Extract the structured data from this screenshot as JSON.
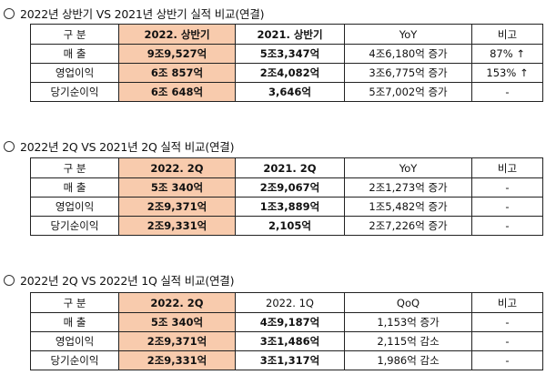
{
  "sections": [
    {
      "title": "2022년 상반기 VS 2021년 상반기 실적 비교(연결)",
      "headers": [
        "구 분",
        "2022. 상반기",
        "2021. 상반기",
        "YoY",
        "비고"
      ],
      "rows": [
        {
          "label": "매 출",
          "current": "9조9,527억",
          "previous": "5조3,347억",
          "diff": "4조6,180억 증가",
          "note": "87% ↑"
        },
        {
          "label": "영업이익",
          "current": "6조 857억",
          "previous": "2조4,082억",
          "diff": "3조6,775억 증가",
          "note": "153% ↑"
        },
        {
          "label": "당기순이익",
          "current": "6조 648억",
          "previous": "3,646억",
          "diff": "5조7,002억 증가",
          "note": "-"
        }
      ]
    },
    {
      "title": "2022년 2Q VS 2021년 2Q 실적 비교(연결)",
      "headers": [
        "구 분",
        "2022. 2Q",
        "2021. 2Q",
        "YoY",
        "비고"
      ],
      "rows": [
        {
          "label": "매 출",
          "current": "5조 340억",
          "previous": "2조9,067억",
          "diff": "2조1,273억 증가",
          "note": "-"
        },
        {
          "label": "영업이익",
          "current": "2조9,371억",
          "previous": "1조3,889억",
          "diff": "1조5,482억 증가",
          "note": "-"
        },
        {
          "label": "당기순이익",
          "current": "2조9,331억",
          "previous": "2,105억",
          "diff": "2조7,226억 증가",
          "note": "-"
        }
      ]
    },
    {
      "title": "2022년 2Q VS 2022년 1Q 실적 비교(연결)",
      "headers": [
        "구 분",
        "2022. 2Q",
        "2022. 1Q",
        "QoQ",
        "비고"
      ],
      "rows": [
        {
          "label": "매 출",
          "current": "5조 340억",
          "previous": "4조9,187억",
          "diff": "1,153억 증가",
          "note": "-"
        },
        {
          "label": "영업이익",
          "current": "2조9,371억",
          "previous": "3조1,486억",
          "diff": "2,115억 감소",
          "note": "-"
        },
        {
          "label": "당기순이익",
          "current": "2조9,331억",
          "previous": "3조1,317억",
          "diff": "1,986억 감소",
          "note": "-"
        }
      ]
    }
  ]
}
